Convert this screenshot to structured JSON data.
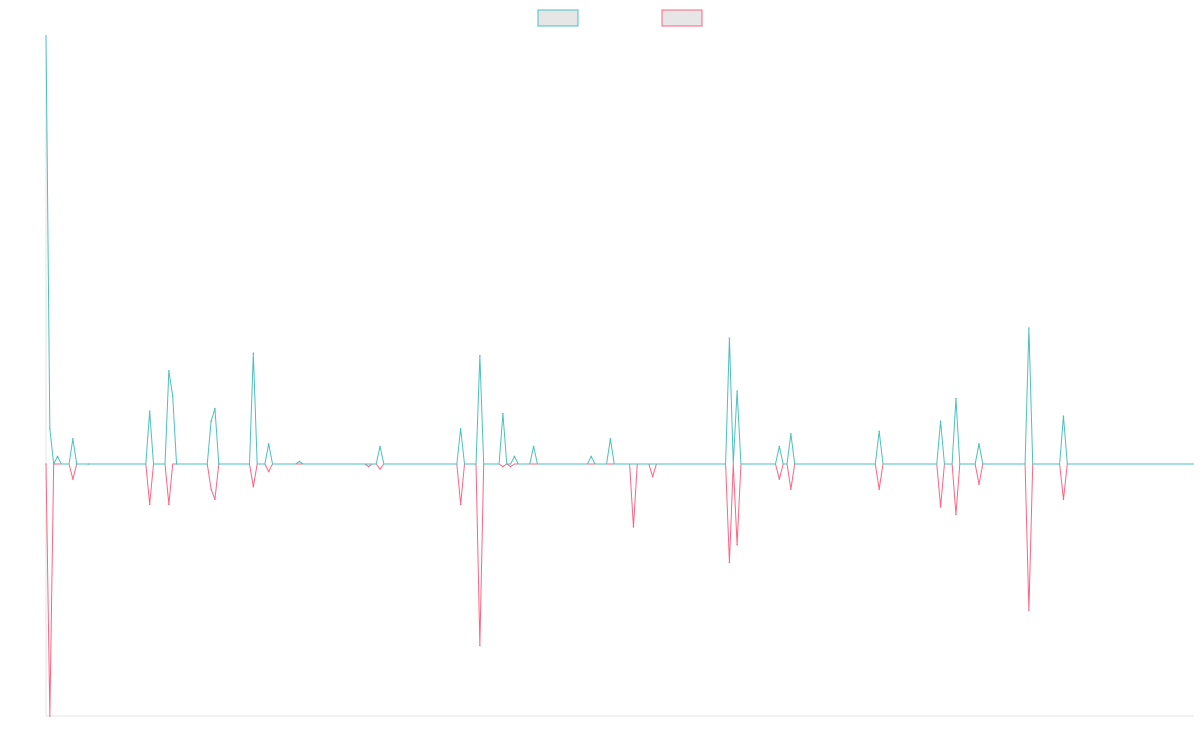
{
  "chart_data": {
    "type": "line",
    "title": "",
    "xlabel": "",
    "ylabel": "",
    "grid": false,
    "legend": "top-center",
    "legend_entries": [
      {
        "label": "",
        "color": "#4bc0c0",
        "fill": "#e6e6e6"
      },
      {
        "label": "",
        "color": "#ff6384",
        "fill": "#e6e6e6"
      }
    ],
    "x_count": 300,
    "ylim": [
      -1,
      1.7
    ],
    "series": [
      {
        "color": "#4bc0c0",
        "spikes": [
          [
            0,
            1.7
          ],
          [
            1,
            0.14
          ],
          [
            2,
            0
          ],
          [
            3,
            0.03
          ],
          [
            7,
            0.1
          ],
          [
            8,
            0
          ],
          [
            11,
            0
          ],
          [
            27,
            0.21
          ],
          [
            32,
            0.37
          ],
          [
            33,
            0.27
          ],
          [
            34,
            0
          ],
          [
            43,
            0.17
          ],
          [
            44,
            0.22
          ],
          [
            45,
            0
          ],
          [
            54,
            0.44
          ],
          [
            58,
            0.08
          ],
          [
            66,
            0.01
          ],
          [
            87,
            0.07
          ],
          [
            108,
            0.14
          ],
          [
            113,
            0.43
          ],
          [
            119,
            0.2
          ],
          [
            122,
            0.03
          ],
          [
            127,
            0.07
          ],
          [
            142,
            0.03
          ],
          [
            147,
            0.1
          ],
          [
            178,
            0.5
          ],
          [
            180,
            0.29
          ],
          [
            191,
            0.07
          ],
          [
            194,
            0.12
          ],
          [
            217,
            0.13
          ],
          [
            233,
            0.17
          ],
          [
            237,
            0.26
          ],
          [
            243,
            0.08
          ],
          [
            256,
            0.54
          ],
          [
            265,
            0.19
          ]
        ],
        "values": []
      },
      {
        "color": "#ff6384",
        "spikes": [
          [
            0,
            0
          ],
          [
            1,
            -1
          ],
          [
            2,
            0
          ],
          [
            7,
            -0.06
          ],
          [
            8,
            0
          ],
          [
            11,
            0
          ],
          [
            27,
            -0.16
          ],
          [
            32,
            -0.16
          ],
          [
            43,
            -0.1
          ],
          [
            44,
            -0.14
          ],
          [
            45,
            0
          ],
          [
            54,
            -0.09
          ],
          [
            58,
            -0.03
          ],
          [
            84,
            -0.01
          ],
          [
            87,
            -0.02
          ],
          [
            108,
            -0.16
          ],
          [
            113,
            -0.72
          ],
          [
            119,
            -0.01
          ],
          [
            121,
            -0.01
          ],
          [
            153,
            -0.25
          ],
          [
            158,
            -0.05
          ],
          [
            178,
            -0.39
          ],
          [
            180,
            -0.32
          ],
          [
            191,
            -0.06
          ],
          [
            194,
            -0.1
          ],
          [
            217,
            -0.1
          ],
          [
            233,
            -0.17
          ],
          [
            237,
            -0.2
          ],
          [
            243,
            -0.08
          ],
          [
            256,
            -0.58
          ],
          [
            265,
            -0.14
          ]
        ],
        "values": []
      }
    ]
  }
}
